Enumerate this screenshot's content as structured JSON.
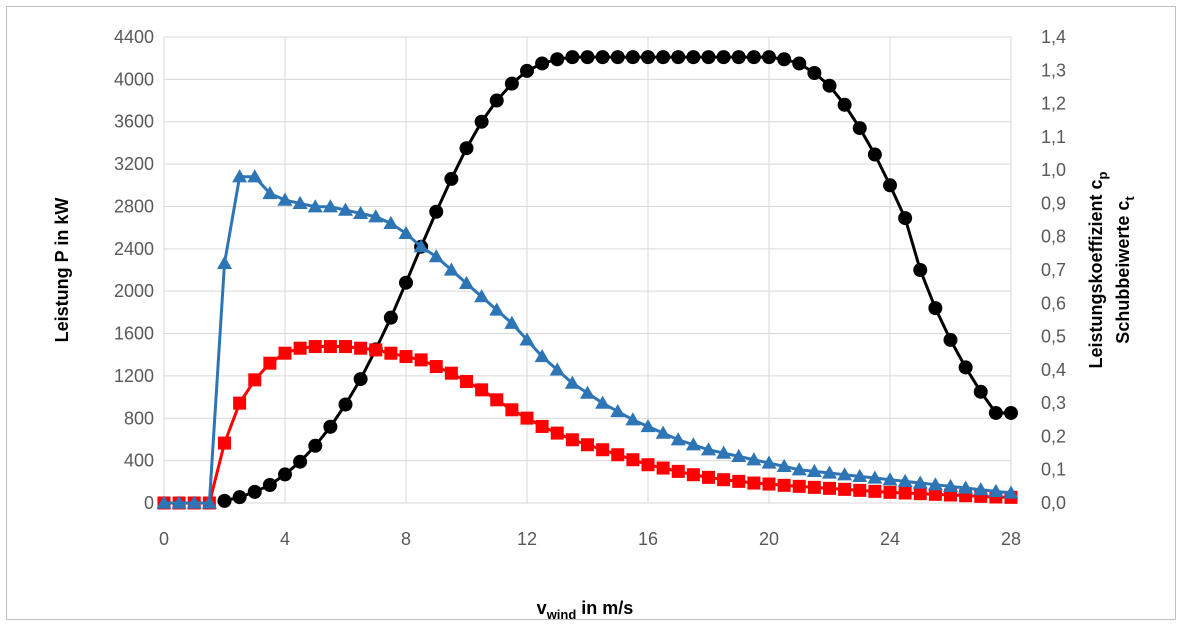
{
  "chart_data": {
    "type": "line",
    "xlabel": {
      "main": "v",
      "sub": "wind",
      "rest": " in m/s"
    },
    "ylabel_left": "Leistung P in kW",
    "ylabel_right_1": {
      "main": "Leistungskoeffizient  c",
      "sub": "p"
    },
    "ylabel_right_2": {
      "main": "Schubbeiwerte c",
      "sub": "t"
    },
    "xlim": [
      0,
      28
    ],
    "ylim_left": [
      0,
      4400
    ],
    "ylim_right": [
      0,
      1.4
    ],
    "x_ticks": [
      "0",
      "4",
      "8",
      "12",
      "16",
      "20",
      "24",
      "28"
    ],
    "y_left_ticks": [
      "0",
      "400",
      "800",
      "1200",
      "1600",
      "2000",
      "2400",
      "2800",
      "3200",
      "3600",
      "4000",
      "4400"
    ],
    "y_right_ticks": [
      "0,0",
      "0,1",
      "0,2",
      "0,3",
      "0,4",
      "0,5",
      "0,6",
      "0,7",
      "0,8",
      "0,9",
      "1,0",
      "1,1",
      "1,2",
      "1,3",
      "1,4"
    ],
    "grid": true,
    "series": [
      {
        "color": "#000000",
        "marker": "circle",
        "axis": "left",
        "x": [
          2,
          2.5,
          3,
          3.5,
          4,
          4.5,
          5,
          5.5,
          6,
          6.5,
          7,
          7.5,
          8,
          8.5,
          9,
          9.5,
          10,
          10.5,
          11,
          11.5,
          12,
          12.5,
          13,
          13.5,
          14,
          14.5,
          15,
          15.5,
          16,
          16.5,
          17,
          17.5,
          18,
          18.5,
          19,
          19.5,
          20,
          20.5,
          21,
          21.5,
          22,
          22.5,
          23,
          23.5,
          24,
          24.5,
          25,
          25.5,
          26,
          26.5,
          27,
          27.5,
          28
        ],
        "y": [
          20,
          55,
          105,
          170,
          270,
          390,
          540,
          720,
          930,
          1170,
          1450,
          1750,
          2080,
          2420,
          2750,
          3060,
          3350,
          3600,
          3800,
          3960,
          4080,
          4150,
          4190,
          4210,
          4210,
          4210,
          4210,
          4210,
          4210,
          4210,
          4210,
          4210,
          4210,
          4210,
          4210,
          4210,
          4210,
          4190,
          4150,
          4060,
          3940,
          3760,
          3540,
          3290,
          3000,
          2690,
          2200,
          1840,
          1540,
          1280,
          1050,
          850,
          850
        ]
      },
      {
        "color": "#ff0000",
        "marker": "square",
        "axis": "right",
        "x": [
          0,
          0.5,
          1,
          1.5,
          2,
          2.5,
          3,
          3.5,
          4,
          4.5,
          5,
          5.5,
          6,
          6.5,
          7,
          7.5,
          8,
          8.5,
          9,
          9.5,
          10,
          10.5,
          11,
          11.5,
          12,
          12.5,
          13,
          13.5,
          14,
          14.5,
          15,
          15.5,
          16,
          16.5,
          17,
          17.5,
          18,
          18.5,
          19,
          19.5,
          20,
          20.5,
          21,
          21.5,
          22,
          22.5,
          23,
          23.5,
          24,
          24.5,
          25,
          25.5,
          26,
          26.5,
          27,
          27.5,
          28
        ],
        "y": [
          0,
          0,
          0,
          0,
          0.18,
          0.3,
          0.37,
          0.42,
          0.45,
          0.465,
          0.47,
          0.47,
          0.47,
          0.465,
          0.46,
          0.45,
          0.44,
          0.43,
          0.41,
          0.39,
          0.365,
          0.34,
          0.31,
          0.28,
          0.255,
          0.23,
          0.21,
          0.19,
          0.175,
          0.16,
          0.145,
          0.13,
          0.115,
          0.105,
          0.095,
          0.085,
          0.077,
          0.07,
          0.065,
          0.06,
          0.057,
          0.053,
          0.05,
          0.047,
          0.044,
          0.041,
          0.038,
          0.035,
          0.032,
          0.03,
          0.028,
          0.026,
          0.024,
          0.022,
          0.02,
          0.018,
          0.017
        ]
      },
      {
        "color": "#2e75b6",
        "marker": "triangle",
        "axis": "right",
        "x": [
          0,
          0.5,
          1,
          1.5,
          2,
          2.5,
          3,
          3.5,
          4,
          4.5,
          5,
          5.5,
          6,
          6.5,
          7,
          7.5,
          8,
          8.5,
          9,
          9.5,
          10,
          10.5,
          11,
          11.5,
          12,
          12.5,
          13,
          13.5,
          14,
          14.5,
          15,
          15.5,
          16,
          16.5,
          17,
          17.5,
          18,
          18.5,
          19,
          19.5,
          20,
          20.5,
          21,
          21.5,
          22,
          22.5,
          23,
          23.5,
          24,
          24.5,
          25,
          25.5,
          26,
          26.5,
          27,
          27.5,
          28
        ],
        "y": [
          0,
          0,
          0,
          0,
          0.72,
          0.98,
          0.98,
          0.93,
          0.91,
          0.9,
          0.89,
          0.89,
          0.88,
          0.87,
          0.86,
          0.84,
          0.81,
          0.77,
          0.74,
          0.7,
          0.66,
          0.62,
          0.58,
          0.54,
          0.49,
          0.44,
          0.4,
          0.36,
          0.33,
          0.3,
          0.275,
          0.25,
          0.23,
          0.21,
          0.19,
          0.175,
          0.16,
          0.15,
          0.14,
          0.13,
          0.12,
          0.11,
          0.1,
          0.095,
          0.09,
          0.085,
          0.08,
          0.075,
          0.07,
          0.065,
          0.06,
          0.055,
          0.05,
          0.045,
          0.04,
          0.035,
          0.03
        ]
      }
    ]
  }
}
